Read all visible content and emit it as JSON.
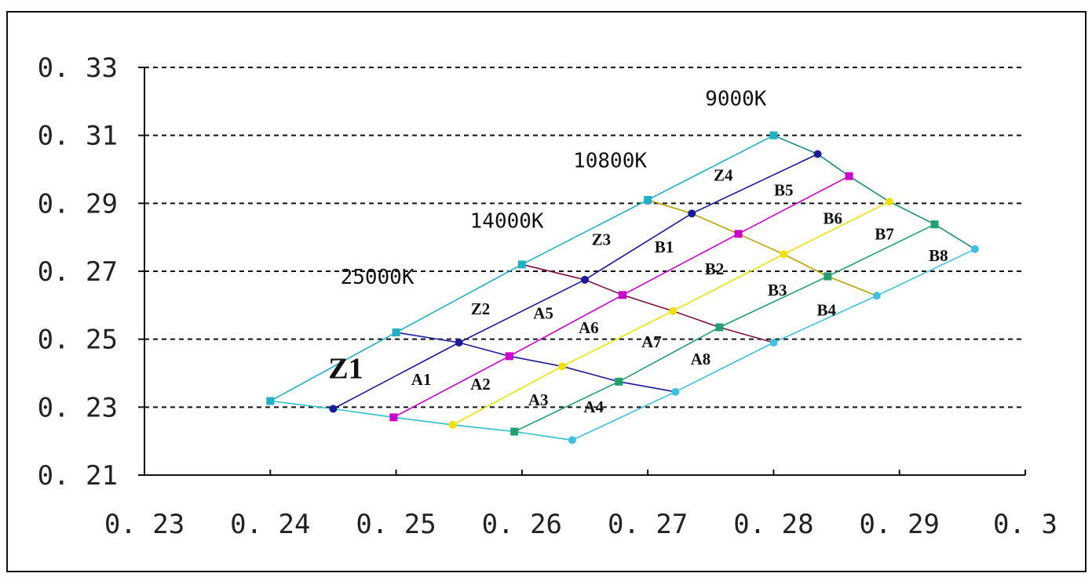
{
  "chart_data": {
    "type": "scatter",
    "title": "",
    "xlabel": "",
    "ylabel": "",
    "xlim": [
      0.23,
      0.3
    ],
    "ylim": [
      0.21,
      0.33
    ],
    "grid": "horizontal dashed",
    "x_tick_labels": [
      "0. 23",
      "0. 24",
      "0. 25",
      "0. 26",
      "0. 27",
      "0. 28",
      "0. 29",
      "0. 3"
    ],
    "x_tick_values": [
      0.23,
      0.24,
      0.25,
      0.26,
      0.27,
      0.28,
      0.29,
      0.3
    ],
    "y_tick_labels": [
      "0. 33",
      "0. 31",
      "0. 29",
      "0. 27",
      "0. 25",
      "0. 23",
      "0. 21"
    ],
    "y_tick_values": [
      0.33,
      0.31,
      0.29,
      0.27,
      0.25,
      0.23,
      0.21
    ],
    "rows": [
      {
        "color": "#22b0c8",
        "points": [
          [
            0.24,
            0.2318
          ],
          [
            0.25,
            0.252
          ],
          [
            0.26,
            0.272
          ],
          [
            0.27,
            0.291
          ],
          [
            0.28,
            0.31
          ]
        ]
      },
      {
        "color": "#1a1a9a",
        "points": [
          [
            0.245,
            0.2295
          ],
          [
            0.255,
            0.249
          ],
          [
            0.265,
            0.2675
          ],
          [
            0.2735,
            0.287
          ],
          [
            0.2835,
            0.3045
          ]
        ]
      },
      {
        "color": "#cc00cc",
        "points": [
          [
            0.2498,
            0.227
          ],
          [
            0.259,
            0.245
          ],
          [
            0.268,
            0.263
          ],
          [
            0.2772,
            0.281
          ],
          [
            0.286,
            0.298
          ]
        ]
      },
      {
        "color": "#f0e000",
        "points": [
          [
            0.2545,
            0.2248
          ],
          [
            0.2632,
            0.242
          ],
          [
            0.272,
            0.2583
          ],
          [
            0.2808,
            0.275
          ],
          [
            0.2892,
            0.2905
          ]
        ]
      },
      {
        "color": "#22a070",
        "points": [
          [
            0.2594,
            0.2228
          ],
          [
            0.2677,
            0.2375
          ],
          [
            0.2757,
            0.2535
          ],
          [
            0.2843,
            0.2685
          ],
          [
            0.2928,
            0.2838
          ]
        ]
      },
      {
        "color": "#40c0e0",
        "points": [
          [
            0.264,
            0.2203
          ],
          [
            0.2722,
            0.2345
          ],
          [
            0.28,
            0.249
          ],
          [
            0.2882,
            0.2628
          ],
          [
            0.296,
            0.2765
          ]
        ]
      }
    ],
    "column_colors": [
      "#30c0c8",
      "#1a1a9a",
      "#801040",
      "#c0a000",
      "#1a8a7a"
    ],
    "temperatures": [
      {
        "label": "25000K",
        "x": 0.2485,
        "y": 0.2663
      },
      {
        "label": "14000K",
        "x": 0.2588,
        "y": 0.2828
      },
      {
        "label": "10800K",
        "x": 0.267,
        "y": 0.3006
      },
      {
        "label": "9000K",
        "x": 0.277,
        "y": 0.3188
      }
    ],
    "regions": [
      {
        "label": "Z1",
        "x": 0.246,
        "y": 0.2385,
        "big": true
      },
      {
        "label": "Z2",
        "x": 0.2567,
        "y": 0.2573
      },
      {
        "label": "Z3",
        "x": 0.2663,
        "y": 0.2777
      },
      {
        "label": "Z4",
        "x": 0.276,
        "y": 0.2967
      },
      {
        "label": "A1",
        "x": 0.252,
        "y": 0.2365
      },
      {
        "label": "A2",
        "x": 0.2567,
        "y": 0.2352
      },
      {
        "label": "A3",
        "x": 0.2613,
        "y": 0.2305
      },
      {
        "label": "A4",
        "x": 0.2657,
        "y": 0.2285
      },
      {
        "label": "A5",
        "x": 0.2617,
        "y": 0.256
      },
      {
        "label": "A6",
        "x": 0.2653,
        "y": 0.2518
      },
      {
        "label": "A7",
        "x": 0.2703,
        "y": 0.2476
      },
      {
        "label": "A8",
        "x": 0.2742,
        "y": 0.2425
      },
      {
        "label": "B1",
        "x": 0.2713,
        "y": 0.2755
      },
      {
        "label": "B2",
        "x": 0.2753,
        "y": 0.2691
      },
      {
        "label": "B3",
        "x": 0.2803,
        "y": 0.2628
      },
      {
        "label": "B4",
        "x": 0.2842,
        "y": 0.257
      },
      {
        "label": "B5",
        "x": 0.2808,
        "y": 0.2923
      },
      {
        "label": "B6",
        "x": 0.2847,
        "y": 0.284
      },
      {
        "label": "B7",
        "x": 0.2888,
        "y": 0.2793
      },
      {
        "label": "B8",
        "x": 0.2931,
        "y": 0.273
      }
    ]
  }
}
